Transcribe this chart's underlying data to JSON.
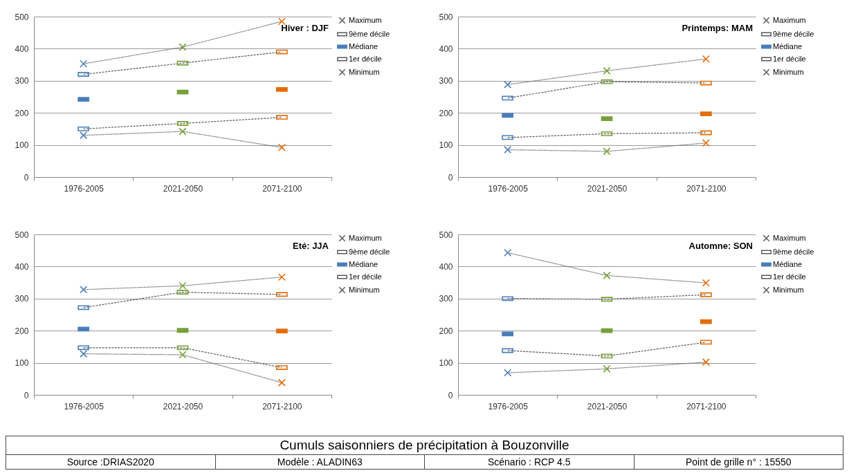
{
  "chart_data": [
    {
      "type": "line",
      "title": "Hiver : DJF",
      "categories": [
        "1976-2005",
        "2021-2050",
        "2071-2100"
      ],
      "ylim": [
        0,
        500
      ],
      "yticks": [
        0,
        100,
        200,
        300,
        400,
        500
      ],
      "grid": "y",
      "legend": "right",
      "series": [
        {
          "name": "Maximum",
          "type": "line",
          "color": "#595959",
          "colors": [
            "#4a7ebb",
            "#77a03a",
            "#e46c0a"
          ],
          "marker": "cross",
          "line_style": "dotted",
          "values": [
            353,
            405,
            485
          ]
        },
        {
          "name": "9ème décile",
          "type": "line",
          "color": "#595959",
          "colors": [
            "#4a7ebb",
            "#77a03a",
            "#e46c0a"
          ],
          "marker": "square",
          "line_style": "dashed",
          "values": [
            320,
            355,
            390
          ]
        },
        {
          "name": "Médiane",
          "type": "scatter",
          "color": "#4a7ebb",
          "colors": [
            "#4a7ebb",
            "#77a03a",
            "#e46c0a"
          ],
          "marker": "square",
          "values": [
            242,
            265,
            273
          ]
        },
        {
          "name": "1er décile",
          "type": "line",
          "color": "#595959",
          "colors": [
            "#4a7ebb",
            "#77a03a",
            "#e46c0a"
          ],
          "marker": "square",
          "line_style": "dashed",
          "values": [
            150,
            167,
            186
          ]
        },
        {
          "name": "Minimum",
          "type": "line",
          "color": "#595959",
          "colors": [
            "#4a7ebb",
            "#77a03a",
            "#e46c0a"
          ],
          "marker": "cross",
          "line_style": "dotted",
          "values": [
            130,
            142,
            92
          ]
        }
      ]
    },
    {
      "type": "line",
      "title": "Printemps:  MAM",
      "categories": [
        "1976-2005",
        "2021-2050",
        "2071-2100"
      ],
      "ylim": [
        0,
        500
      ],
      "yticks": [
        0,
        100,
        200,
        300,
        400,
        500
      ],
      "grid": "y",
      "legend": "right",
      "series": [
        {
          "name": "Maximum",
          "type": "line",
          "color": "#595959",
          "colors": [
            "#4a7ebb",
            "#77a03a",
            "#e46c0a"
          ],
          "marker": "cross",
          "line_style": "dotted",
          "values": [
            288,
            331,
            368
          ]
        },
        {
          "name": "9ème décile",
          "type": "line",
          "color": "#595959",
          "colors": [
            "#4a7ebb",
            "#77a03a",
            "#e46c0a"
          ],
          "marker": "square",
          "line_style": "dashed",
          "values": [
            246,
            297,
            293
          ]
        },
        {
          "name": "Médiane",
          "type": "scatter",
          "color": "#4a7ebb",
          "colors": [
            "#4a7ebb",
            "#77a03a",
            "#e46c0a"
          ],
          "marker": "square",
          "values": [
            192,
            182,
            197
          ]
        },
        {
          "name": "1er décile",
          "type": "line",
          "color": "#595959",
          "colors": [
            "#4a7ebb",
            "#77a03a",
            "#e46c0a"
          ],
          "marker": "square",
          "line_style": "dashed",
          "values": [
            123,
            135,
            138
          ]
        },
        {
          "name": "Minimum",
          "type": "line",
          "color": "#595959",
          "colors": [
            "#4a7ebb",
            "#77a03a",
            "#e46c0a"
          ],
          "marker": "cross",
          "line_style": "dotted",
          "values": [
            85,
            80,
            106
          ]
        }
      ]
    },
    {
      "type": "line",
      "title": "Eté: JJA",
      "categories": [
        "1976-2005",
        "2021-2050",
        "2071-2100"
      ],
      "ylim": [
        0,
        500
      ],
      "yticks": [
        0,
        100,
        200,
        300,
        400,
        500
      ],
      "grid": "y",
      "legend": "right",
      "series": [
        {
          "name": "Maximum",
          "type": "line",
          "color": "#595959",
          "colors": [
            "#4a7ebb",
            "#77a03a",
            "#e46c0a"
          ],
          "marker": "cross",
          "line_style": "dotted",
          "values": [
            328,
            340,
            367
          ]
        },
        {
          "name": "9ème décile",
          "type": "line",
          "color": "#595959",
          "colors": [
            "#4a7ebb",
            "#77a03a",
            "#e46c0a"
          ],
          "marker": "square",
          "line_style": "dashed",
          "values": [
            272,
            320,
            313
          ]
        },
        {
          "name": "Médiane",
          "type": "scatter",
          "color": "#4a7ebb",
          "colors": [
            "#4a7ebb",
            "#77a03a",
            "#e46c0a"
          ],
          "marker": "square",
          "values": [
            205,
            201,
            199
          ]
        },
        {
          "name": "1er décile",
          "type": "line",
          "color": "#595959",
          "colors": [
            "#4a7ebb",
            "#77a03a",
            "#e46c0a"
          ],
          "marker": "square",
          "line_style": "dashed",
          "values": [
            147,
            147,
            85
          ]
        },
        {
          "name": "Minimum",
          "type": "line",
          "color": "#595959",
          "colors": [
            "#4a7ebb",
            "#77a03a",
            "#e46c0a"
          ],
          "marker": "cross",
          "line_style": "dotted",
          "values": [
            128,
            125,
            38
          ]
        }
      ]
    },
    {
      "type": "line",
      "title": "Automne: SON",
      "categories": [
        "1976-2005",
        "2021-2050",
        "2071-2100"
      ],
      "ylim": [
        0,
        500
      ],
      "yticks": [
        0,
        100,
        200,
        300,
        400,
        500
      ],
      "grid": "y",
      "legend": "right",
      "series": [
        {
          "name": "Maximum",
          "type": "line",
          "color": "#595959",
          "colors": [
            "#4a7ebb",
            "#77a03a",
            "#e46c0a"
          ],
          "marker": "cross",
          "line_style": "dotted",
          "values": [
            443,
            372,
            349
          ]
        },
        {
          "name": "9ème décile",
          "type": "line",
          "color": "#595959",
          "colors": [
            "#4a7ebb",
            "#77a03a",
            "#e46c0a"
          ],
          "marker": "square",
          "line_style": "dashed",
          "values": [
            300,
            298,
            312
          ]
        },
        {
          "name": "Médiane",
          "type": "scatter",
          "color": "#4a7ebb",
          "colors": [
            "#4a7ebb",
            "#77a03a",
            "#e46c0a"
          ],
          "marker": "square",
          "values": [
            190,
            200,
            228
          ]
        },
        {
          "name": "1er décile",
          "type": "line",
          "color": "#595959",
          "colors": [
            "#4a7ebb",
            "#77a03a",
            "#e46c0a"
          ],
          "marker": "square",
          "line_style": "dashed",
          "values": [
            138,
            121,
            164
          ]
        },
        {
          "name": "Minimum",
          "type": "line",
          "color": "#595959",
          "colors": [
            "#4a7ebb",
            "#77a03a",
            "#e46c0a"
          ],
          "marker": "cross",
          "line_style": "dotted",
          "values": [
            69,
            81,
            102
          ]
        }
      ]
    },
    {
      "type": "other",
      "title": "Cumuls saisonniers de précipitation à Bouzonville",
      "annotations": [
        "Source :DRIAS2020",
        "Modèle :  ALADIN63",
        "Scénario : RCP 4.5",
        "Point de grille n° : 15550"
      ]
    }
  ]
}
